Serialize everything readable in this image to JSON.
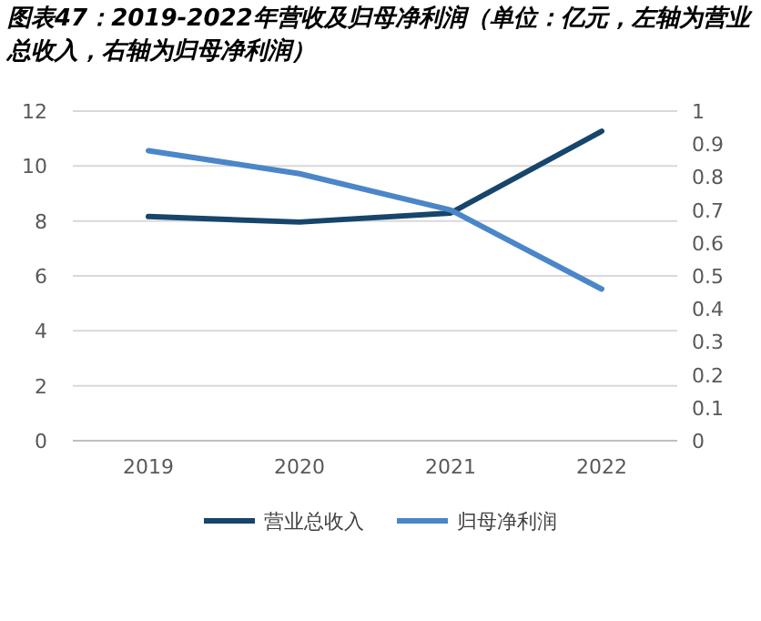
{
  "chart_data": {
    "type": "line",
    "title": "图表47：2019-2022年营收及归母净利润（单位：亿元，左轴为营业总收入，右轴为归母净利润）",
    "categories": [
      "2019",
      "2020",
      "2021",
      "2022"
    ],
    "series": [
      {
        "name": "营业总收入",
        "color": "#17456b",
        "values": [
          8.16,
          7.96,
          8.29,
          11.27
        ]
      },
      {
        "name": "归母净利润",
        "color": "#4a86c8",
        "values": [
          0.88,
          0.81,
          0.7,
          0.46
        ],
        "axis": "y2"
      }
    ],
    "ylim": [
      0,
      12
    ],
    "yticks": [
      0,
      2,
      4,
      6,
      8,
      10,
      12
    ],
    "y2lim": [
      0,
      1
    ],
    "y2ticks": [
      0,
      0.1,
      0.2,
      0.3,
      0.4,
      0.5,
      0.6,
      0.7,
      0.8,
      0.9,
      1
    ],
    "grid": "y",
    "legend": "bottom",
    "marker": "none",
    "line_style": "solid"
  }
}
